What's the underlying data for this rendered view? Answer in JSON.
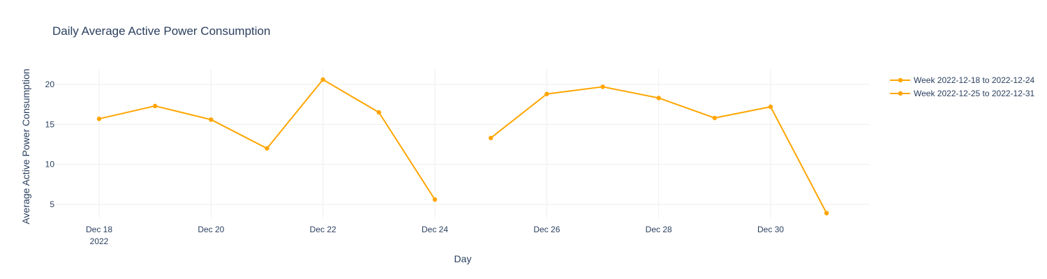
{
  "chart_data": {
    "type": "line",
    "title": "Daily Average Active Power Consumption",
    "xlabel": "Day",
    "ylabel": "Average Active Power Consumption",
    "xlim": [
      "2022-12-17",
      "2022-12-31"
    ],
    "ylim": [
      3,
      22
    ],
    "x_tick_labels": [
      "Dec 18",
      "Dec 20",
      "Dec 22",
      "Dec 24",
      "Dec 26",
      "Dec 28",
      "Dec 30"
    ],
    "x_tick_sublabel": "2022",
    "y_tick_labels": [
      "5",
      "10",
      "15",
      "20"
    ],
    "grid": true,
    "legend_position": "top-right",
    "series": [
      {
        "name": "Week 2022-12-18 to 2022-12-24",
        "color": "#FFA500",
        "x": [
          "2022-12-18",
          "2022-12-19",
          "2022-12-20",
          "2022-12-21",
          "2022-12-22",
          "2022-12-23",
          "2022-12-24"
        ],
        "y": [
          15.7,
          17.3,
          15.6,
          12.0,
          20.6,
          16.5,
          5.6
        ]
      },
      {
        "name": "Week 2022-12-25 to 2022-12-31",
        "color": "#FFA500",
        "x": [
          "2022-12-25",
          "2022-12-26",
          "2022-12-27",
          "2022-12-28",
          "2022-12-29",
          "2022-12-30",
          "2022-12-31"
        ],
        "y": [
          13.3,
          18.8,
          19.7,
          18.3,
          15.8,
          17.2,
          3.9
        ]
      }
    ]
  }
}
